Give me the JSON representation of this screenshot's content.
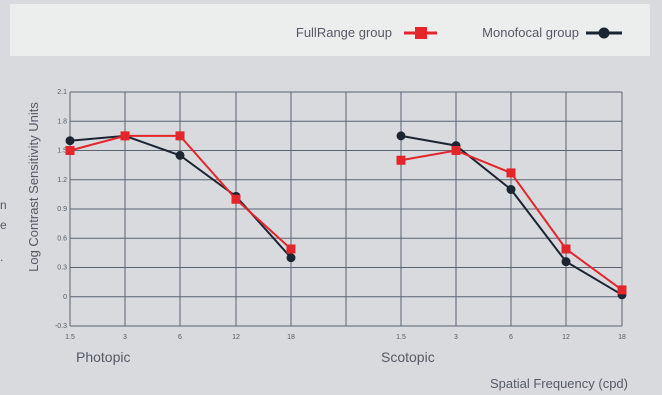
{
  "colors": {
    "background": "#d9dadd",
    "legend_background": "#eceded",
    "grid": "#5b6373",
    "fullrange": "#e3262c",
    "monofocal": "#1c2532",
    "text": "#555a66"
  },
  "edge_fragments": [
    "n",
    "e",
    "."
  ],
  "chart_data": {
    "type": "line",
    "title": "",
    "ylabel": "Log Contrast Sensitivity Units",
    "xlabel": "Spatial Frequency (cpd)",
    "ylim": [
      -0.3,
      2.1
    ],
    "yticks": [
      "-0.3",
      "0",
      "0.3",
      "0.6",
      "0.9",
      "1.2",
      "1.5",
      "1.8",
      "2.1"
    ],
    "grid": true,
    "legend_position": "top-right",
    "panels": [
      {
        "label": "Photopic",
        "categories": [
          "1.5",
          "3",
          "6",
          "12",
          "18"
        ],
        "series": [
          {
            "name": "FullRange group",
            "values": [
              1.5,
              1.65,
              1.65,
              1.0,
              0.49
            ]
          },
          {
            "name": "Monofocal group",
            "values": [
              1.6,
              1.65,
              1.45,
              1.03,
              0.4
            ]
          }
        ]
      },
      {
        "label": "Scotopic",
        "categories": [
          "1.5",
          "3",
          "6",
          "12",
          "18"
        ],
        "series": [
          {
            "name": "FullRange group",
            "values": [
              1.4,
              1.5,
              1.27,
              0.49,
              0.07
            ]
          },
          {
            "name": "Monofocal group",
            "values": [
              1.65,
              1.55,
              1.1,
              0.36,
              0.02
            ]
          }
        ]
      }
    ]
  }
}
